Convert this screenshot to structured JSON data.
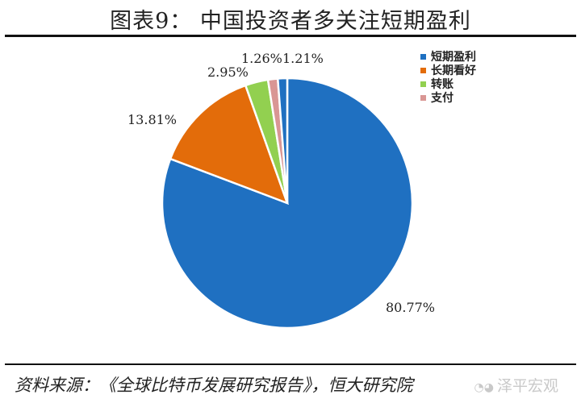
{
  "header": {
    "title": "图表9：   中国投资者多关注短期盈利"
  },
  "footer": {
    "source": "资料来源：《全球比特币发展研究报告》，恒大研究院",
    "watermark": "泽平宏观"
  },
  "chart_data": {
    "type": "pie",
    "slices": [
      {
        "label": "短期盈利",
        "value": 80.77,
        "display": "80.77%",
        "color": "#1f70c1"
      },
      {
        "label": "长期看好",
        "value": 13.81,
        "display": "13.81%",
        "color": "#e36c0a"
      },
      {
        "label": "转账",
        "value": 2.95,
        "display": "2.95%",
        "color": "#92d050"
      },
      {
        "label": "支付",
        "value": 1.26,
        "display": "1.26%",
        "color": "#d99694"
      },
      {
        "label": "",
        "value": 1.21,
        "display": "1.21%",
        "color": "#1f70c1"
      }
    ],
    "legend": {
      "position": "top-right",
      "entries": [
        "短期盈利",
        "长期看好",
        "转账",
        "支付"
      ]
    }
  }
}
